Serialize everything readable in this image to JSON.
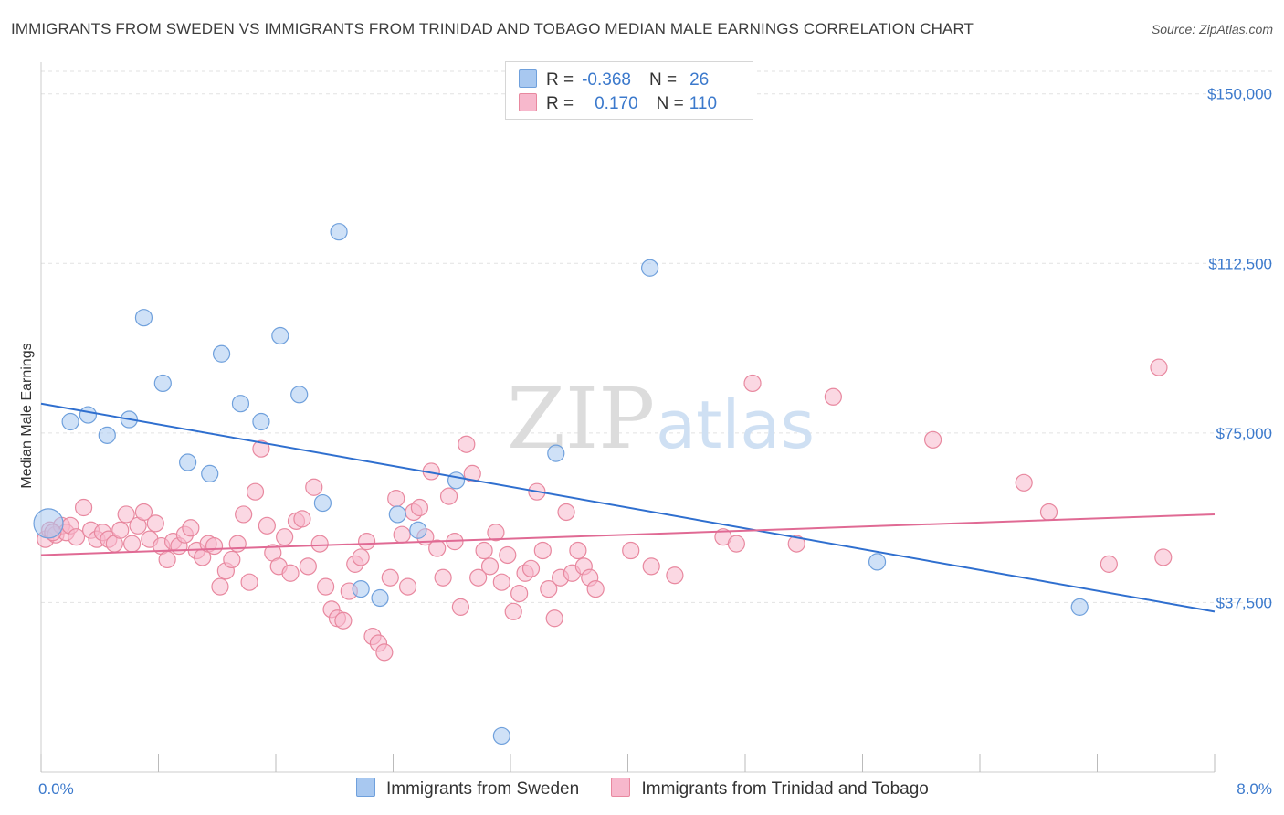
{
  "header": {
    "title": "IMMIGRANTS FROM SWEDEN VS IMMIGRANTS FROM TRINIDAD AND TOBAGO MEDIAN MALE EARNINGS CORRELATION CHART",
    "source": "Source: ZipAtlas.com"
  },
  "watermark": {
    "zip": "ZIP",
    "atlas": "atlas"
  },
  "legend": {
    "rows": [
      {
        "r_label": "R =",
        "r_value": "-0.368",
        "n_label": "N =",
        "n_value": "26",
        "color": "#a8c8f0",
        "stroke": "#6fa0dc"
      },
      {
        "r_label": "R =",
        "r_value": "0.170",
        "n_label": "N =",
        "n_value": "110",
        "color": "#f7b8cc",
        "stroke": "#e8889f"
      }
    ]
  },
  "bottom_legend": {
    "items": [
      {
        "label": "Immigrants from Sweden",
        "color": "#a8c8f0",
        "stroke": "#6fa0dc"
      },
      {
        "label": "Immigrants from Trinidad and Tobago",
        "color": "#f7b8cc",
        "stroke": "#e8889f"
      }
    ]
  },
  "chart_data": {
    "type": "scatter",
    "title": "IMMIGRANTS FROM SWEDEN VS IMMIGRANTS FROM TRINIDAD AND TOBAGO MEDIAN MALE EARNINGS CORRELATION CHART",
    "xlabel": "",
    "ylabel": "Median Male Earnings",
    "xlim": [
      0,
      8
    ],
    "ylim": [
      0,
      155000
    ],
    "x_tick_labels": [
      "0.0%",
      "8.0%"
    ],
    "y_ticks": [
      37500,
      75000,
      112500,
      150000
    ],
    "y_tick_labels": [
      "$37,500",
      "$75,000",
      "$112,500",
      "$150,000"
    ],
    "grid": true,
    "series": [
      {
        "name": "Immigrants from Sweden",
        "color": "#6fa0dc",
        "fill": "#a8c8f0",
        "trend": {
          "x": [
            0,
            8
          ],
          "y": [
            81500,
            35500
          ]
        },
        "points": [
          [
            0.05,
            55000
          ],
          [
            0.2,
            77500
          ],
          [
            0.32,
            79000
          ],
          [
            0.45,
            74500
          ],
          [
            0.6,
            78000
          ],
          [
            0.7,
            100500
          ],
          [
            0.83,
            86000
          ],
          [
            1.0,
            68500
          ],
          [
            1.15,
            66000
          ],
          [
            1.23,
            92500
          ],
          [
            1.36,
            81500
          ],
          [
            1.5,
            77500
          ],
          [
            1.63,
            96500
          ],
          [
            1.76,
            83500
          ],
          [
            1.92,
            59500
          ],
          [
            2.03,
            119500
          ],
          [
            2.18,
            40500
          ],
          [
            2.31,
            38500
          ],
          [
            2.43,
            57000
          ],
          [
            2.57,
            53500
          ],
          [
            2.83,
            64500
          ],
          [
            3.14,
            8000
          ],
          [
            3.51,
            70500
          ],
          [
            4.15,
            111500
          ],
          [
            5.7,
            46500
          ],
          [
            7.08,
            36500
          ]
        ]
      },
      {
        "name": "Immigrants from Trinidad and Tobago",
        "color": "#e8889f",
        "fill": "#f7b8cc",
        "trend": {
          "x": [
            0,
            8
          ],
          "y": [
            48000,
            57000
          ]
        },
        "points": [
          [
            0.03,
            51500
          ],
          [
            0.06,
            53500
          ],
          [
            0.1,
            52500
          ],
          [
            0.14,
            54500
          ],
          [
            0.17,
            53000
          ],
          [
            0.2,
            54500
          ],
          [
            0.24,
            52000
          ],
          [
            0.29,
            58500
          ],
          [
            0.34,
            53500
          ],
          [
            0.38,
            51500
          ],
          [
            0.42,
            53000
          ],
          [
            0.46,
            51500
          ],
          [
            0.5,
            50500
          ],
          [
            0.54,
            53500
          ],
          [
            0.58,
            57000
          ],
          [
            0.62,
            50500
          ],
          [
            0.66,
            54500
          ],
          [
            0.7,
            57500
          ],
          [
            0.74,
            51500
          ],
          [
            0.78,
            55000
          ],
          [
            0.82,
            50000
          ],
          [
            0.86,
            47000
          ],
          [
            0.9,
            51000
          ],
          [
            0.94,
            50000
          ],
          [
            0.98,
            52500
          ],
          [
            1.02,
            54000
          ],
          [
            1.06,
            49000
          ],
          [
            1.1,
            47500
          ],
          [
            1.14,
            50500
          ],
          [
            1.18,
            50000
          ],
          [
            1.22,
            41000
          ],
          [
            1.26,
            44500
          ],
          [
            1.3,
            47000
          ],
          [
            1.34,
            50500
          ],
          [
            1.38,
            57000
          ],
          [
            1.42,
            42000
          ],
          [
            1.46,
            62000
          ],
          [
            1.5,
            71500
          ],
          [
            1.54,
            54500
          ],
          [
            1.58,
            48500
          ],
          [
            1.62,
            45500
          ],
          [
            1.66,
            52000
          ],
          [
            1.7,
            44000
          ],
          [
            1.74,
            55500
          ],
          [
            1.78,
            56000
          ],
          [
            1.82,
            45500
          ],
          [
            1.86,
            63000
          ],
          [
            1.9,
            50500
          ],
          [
            1.94,
            41000
          ],
          [
            1.98,
            36000
          ],
          [
            2.02,
            34000
          ],
          [
            2.06,
            33500
          ],
          [
            2.1,
            40000
          ],
          [
            2.14,
            46000
          ],
          [
            2.18,
            47500
          ],
          [
            2.22,
            51000
          ],
          [
            2.26,
            30000
          ],
          [
            2.3,
            28500
          ],
          [
            2.34,
            26500
          ],
          [
            2.38,
            43000
          ],
          [
            2.42,
            60500
          ],
          [
            2.46,
            52500
          ],
          [
            2.5,
            41000
          ],
          [
            2.54,
            57500
          ],
          [
            2.58,
            58500
          ],
          [
            2.62,
            52000
          ],
          [
            2.66,
            66500
          ],
          [
            2.7,
            49500
          ],
          [
            2.74,
            43000
          ],
          [
            2.78,
            61000
          ],
          [
            2.82,
            51000
          ],
          [
            2.86,
            36500
          ],
          [
            2.9,
            72500
          ],
          [
            2.94,
            66000
          ],
          [
            2.98,
            43000
          ],
          [
            3.02,
            49000
          ],
          [
            3.06,
            45500
          ],
          [
            3.1,
            53000
          ],
          [
            3.14,
            42000
          ],
          [
            3.18,
            48000
          ],
          [
            3.22,
            35500
          ],
          [
            3.26,
            39500
          ],
          [
            3.3,
            44000
          ],
          [
            3.34,
            45000
          ],
          [
            3.38,
            62000
          ],
          [
            3.42,
            49000
          ],
          [
            3.46,
            40500
          ],
          [
            3.5,
            34000
          ],
          [
            3.54,
            43000
          ],
          [
            3.58,
            57500
          ],
          [
            3.62,
            44000
          ],
          [
            3.66,
            49000
          ],
          [
            3.7,
            45500
          ],
          [
            3.74,
            43000
          ],
          [
            3.78,
            40500
          ],
          [
            4.02,
            49000
          ],
          [
            4.16,
            45500
          ],
          [
            4.32,
            43500
          ],
          [
            4.65,
            52000
          ],
          [
            4.74,
            50500
          ],
          [
            4.85,
            86000
          ],
          [
            5.15,
            50500
          ],
          [
            5.4,
            83000
          ],
          [
            6.08,
            73500
          ],
          [
            6.7,
            64000
          ],
          [
            6.87,
            57500
          ],
          [
            7.28,
            46000
          ],
          [
            7.62,
            89500
          ],
          [
            7.65,
            47500
          ],
          [
            0.08,
            53000
          ]
        ]
      }
    ]
  }
}
